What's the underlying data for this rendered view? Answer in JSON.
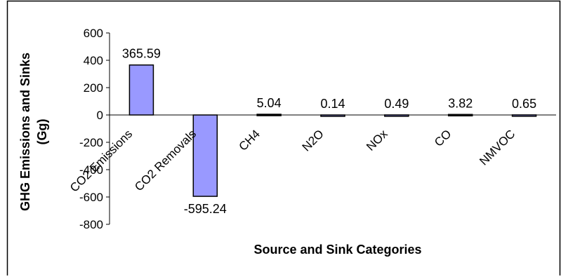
{
  "chart_data": {
    "type": "bar",
    "title": "",
    "xlabel": "Source and Sink Categories",
    "ylabel_line1": "GHG Emissions and Sinks",
    "ylabel_line2": "(Gg)",
    "ylim": [
      -800,
      600
    ],
    "yticks": [
      600,
      400,
      200,
      0,
      -200,
      -400,
      -600,
      -800
    ],
    "categories": [
      "CO2 Emissions",
      "CO2 Removals",
      "CH4",
      "N2O",
      "NOx",
      "CO",
      "NMVOC"
    ],
    "values": [
      365.59,
      -595.24,
      5.04,
      0.14,
      0.49,
      3.82,
      0.65
    ],
    "data_labels": [
      "365.59",
      "-595.24",
      "5.04",
      "0.14",
      "0.49",
      "3.82",
      "0.65"
    ],
    "grid": false,
    "legend": "none",
    "colors": {
      "bar_fill": "#9999ff",
      "bar_stroke": "#000000",
      "axis": "#000000",
      "frame": "#000000"
    }
  }
}
